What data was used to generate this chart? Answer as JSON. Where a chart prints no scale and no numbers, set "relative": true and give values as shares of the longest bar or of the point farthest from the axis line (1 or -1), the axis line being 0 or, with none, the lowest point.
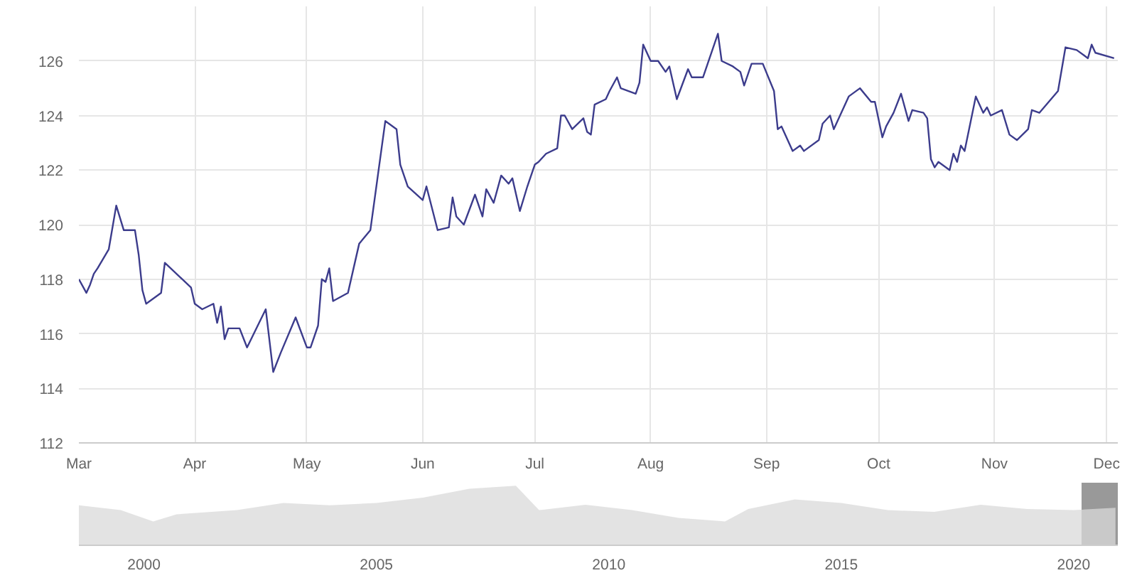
{
  "chart_data": [
    {
      "type": "line",
      "x": [
        "2020-03-01",
        "2020-03-03",
        "2020-03-04",
        "2020-03-05",
        "2020-03-06",
        "2020-03-09",
        "2020-03-11",
        "2020-03-13",
        "2020-03-16",
        "2020-03-17",
        "2020-03-18",
        "2020-03-19",
        "2020-03-23",
        "2020-03-24",
        "2020-03-31",
        "2020-04-01",
        "2020-04-03",
        "2020-04-06",
        "2020-04-07",
        "2020-04-08",
        "2020-04-09",
        "2020-04-10",
        "2020-04-13",
        "2020-04-15",
        "2020-04-20",
        "2020-04-22",
        "2020-04-24",
        "2020-04-28",
        "2020-05-01",
        "2020-05-02",
        "2020-05-04",
        "2020-05-05",
        "2020-05-06",
        "2020-05-07",
        "2020-05-08",
        "2020-05-12",
        "2020-05-14",
        "2020-05-15",
        "2020-05-18",
        "2020-05-20",
        "2020-05-22",
        "2020-05-25",
        "2020-05-26",
        "2020-05-28",
        "2020-06-01",
        "2020-06-02",
        "2020-06-05",
        "2020-06-08",
        "2020-06-09",
        "2020-06-10",
        "2020-06-12",
        "2020-06-15",
        "2020-06-17",
        "2020-06-18",
        "2020-06-20",
        "2020-06-22",
        "2020-06-24",
        "2020-06-25",
        "2020-06-27",
        "2020-06-29",
        "2020-07-01",
        "2020-07-02",
        "2020-07-04",
        "2020-07-07",
        "2020-07-08",
        "2020-07-09",
        "2020-07-11",
        "2020-07-14",
        "2020-07-15",
        "2020-07-16",
        "2020-07-17",
        "2020-07-20",
        "2020-07-21",
        "2020-07-23",
        "2020-07-24",
        "2020-07-28",
        "2020-07-29",
        "2020-07-30",
        "2020-08-01",
        "2020-08-03",
        "2020-08-05",
        "2020-08-06",
        "2020-08-08",
        "2020-08-11",
        "2020-08-12",
        "2020-08-15",
        "2020-08-19",
        "2020-08-20",
        "2020-08-23",
        "2020-08-25",
        "2020-08-26",
        "2020-08-28",
        "2020-08-31",
        "2020-09-03",
        "2020-09-04",
        "2020-09-05",
        "2020-09-08",
        "2020-09-10",
        "2020-09-11",
        "2020-09-15",
        "2020-09-16",
        "2020-09-18",
        "2020-09-19",
        "2020-09-23",
        "2020-09-26",
        "2020-09-29",
        "2020-09-30",
        "2020-10-02",
        "2020-10-03",
        "2020-10-05",
        "2020-10-07",
        "2020-10-09",
        "2020-10-10",
        "2020-10-13",
        "2020-10-14",
        "2020-10-15",
        "2020-10-16",
        "2020-10-17",
        "2020-10-20",
        "2020-10-21",
        "2020-10-22",
        "2020-10-23",
        "2020-10-24",
        "2020-10-27",
        "2020-10-29",
        "2020-10-30",
        "2020-10-31",
        "2020-11-03",
        "2020-11-05",
        "2020-11-07",
        "2020-11-10",
        "2020-11-11",
        "2020-11-13",
        "2020-11-18",
        "2020-11-20",
        "2020-11-23",
        "2020-11-25",
        "2020-11-26",
        "2020-11-27",
        "2020-11-28",
        "2020-12-03"
      ],
      "series": [
        {
          "color": "#3c3c8c",
          "values": [
            118.0,
            117.5,
            117.8,
            118.2,
            118.4,
            119.1,
            120.7,
            119.8,
            119.8,
            118.9,
            117.6,
            117.1,
            117.5,
            118.6,
            117.7,
            117.1,
            116.9,
            117.1,
            116.4,
            117.0,
            115.8,
            116.2,
            116.2,
            115.5,
            116.9,
            114.6,
            115.3,
            116.6,
            115.5,
            115.5,
            116.3,
            118.0,
            117.9,
            118.4,
            117.2,
            117.5,
            118.7,
            119.3,
            119.8,
            121.8,
            123.8,
            123.5,
            122.2,
            121.4,
            120.9,
            121.4,
            119.8,
            119.9,
            121.0,
            120.3,
            120.0,
            121.1,
            120.3,
            121.3,
            120.8,
            121.8,
            121.5,
            121.7,
            120.5,
            121.4,
            122.2,
            122.3,
            122.6,
            122.8,
            124.0,
            124.0,
            123.5,
            123.9,
            123.4,
            123.3,
            124.4,
            124.6,
            124.9,
            125.4,
            125.0,
            124.8,
            125.2,
            126.6,
            126.0,
            126.0,
            125.6,
            125.8,
            124.6,
            125.7,
            125.4,
            125.4,
            127.0,
            126.0,
            125.8,
            125.6,
            125.1,
            125.9,
            125.9,
            124.9,
            123.5,
            123.6,
            122.7,
            122.9,
            122.7,
            123.1,
            123.7,
            124.0,
            123.5,
            124.7,
            125.0,
            124.5,
            124.5,
            123.2,
            123.6,
            124.1,
            124.8,
            123.8,
            124.2,
            124.1,
            123.9,
            122.4,
            122.1,
            122.3,
            122.0,
            122.6,
            122.3,
            122.9,
            122.7,
            124.7,
            124.1,
            124.3,
            124.0,
            124.2,
            123.3,
            123.1,
            123.5,
            124.2,
            124.1,
            124.9,
            126.5,
            126.4,
            126.2,
            126.1,
            126.6,
            126.3,
            126.1
          ]
        }
      ],
      "xlim": [
        "2020-03-01",
        "2020-12-04"
      ],
      "xticks": [
        {
          "value": "2020-03-01",
          "label": "Mar"
        },
        {
          "value": "2020-04-01",
          "label": "Apr"
        },
        {
          "value": "2020-05-01",
          "label": "May"
        },
        {
          "value": "2020-06-01",
          "label": "Jun"
        },
        {
          "value": "2020-07-01",
          "label": "Jul"
        },
        {
          "value": "2020-08-01",
          "label": "Aug"
        },
        {
          "value": "2020-09-01",
          "label": "Sep"
        },
        {
          "value": "2020-10-01",
          "label": "Oct"
        },
        {
          "value": "2020-11-01",
          "label": "Nov"
        },
        {
          "value": "2020-12-01",
          "label": "Dec"
        }
      ],
      "ylim": [
        112,
        128
      ],
      "yticks": [
        112,
        114,
        116,
        118,
        120,
        122,
        124,
        126
      ],
      "grid": true
    },
    {
      "type": "area",
      "relative": true,
      "tick_labels": "x",
      "x": [
        1998.6,
        1999.5,
        2000.2,
        2000.7,
        2002,
        2003,
        2004,
        2005,
        2006,
        2007,
        2008,
        2008.5,
        2009.5,
        2010.5,
        2011.5,
        2012.5,
        2013,
        2014,
        2015,
        2016,
        2017,
        2018,
        2019,
        2020,
        2020.9
      ],
      "series": [
        {
          "color": "#dadada",
          "values": [
            0.67,
            0.59,
            0.4,
            0.52,
            0.59,
            0.71,
            0.67,
            0.71,
            0.8,
            0.95,
            1,
            0.59,
            0.68,
            0.59,
            0.46,
            0.4,
            0.61,
            0.77,
            0.71,
            0.59,
            0.56,
            0.68,
            0.61,
            0.59,
            0.63
          ]
        }
      ],
      "xlim": [
        1998.6,
        2020.95
      ],
      "xticks": [
        2000,
        2005,
        2010,
        2015,
        2020
      ],
      "bands": [
        {
          "axis": "x",
          "from": 2020.17,
          "to": 2020.95,
          "color": "#808080"
        }
      ]
    }
  ]
}
